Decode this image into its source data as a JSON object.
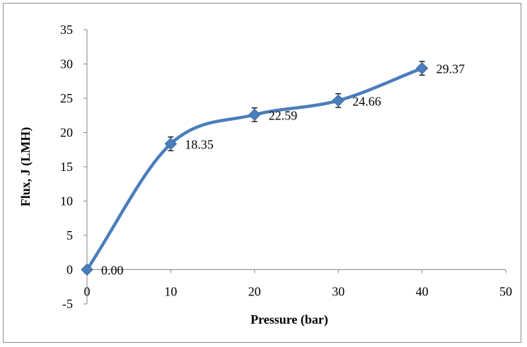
{
  "chart_data": {
    "type": "line",
    "title": "",
    "xlabel": "Pressure (bar)",
    "ylabel": "Flux, J (LMH)",
    "xlim": [
      0,
      50
    ],
    "ylim": [
      -5,
      35
    ],
    "x_ticks": [
      "0",
      "10",
      "20",
      "30",
      "40",
      "50"
    ],
    "y_ticks": [
      "-5",
      "0",
      "5",
      "10",
      "15",
      "20",
      "25",
      "30",
      "35"
    ],
    "grid": false,
    "legend": "none",
    "smoothed": true,
    "marker": "diamond",
    "color": "#4a7ebb",
    "series": [
      {
        "x": [
          0,
          10,
          20,
          30,
          40
        ],
        "y": [
          0.0,
          18.35,
          22.59,
          24.66,
          29.37
        ],
        "labels": [
          "0.00",
          "18.35",
          "22.59",
          "24.66",
          "29.37"
        ],
        "error": [
          0,
          1.0,
          1.0,
          1.0,
          1.0
        ]
      }
    ]
  }
}
